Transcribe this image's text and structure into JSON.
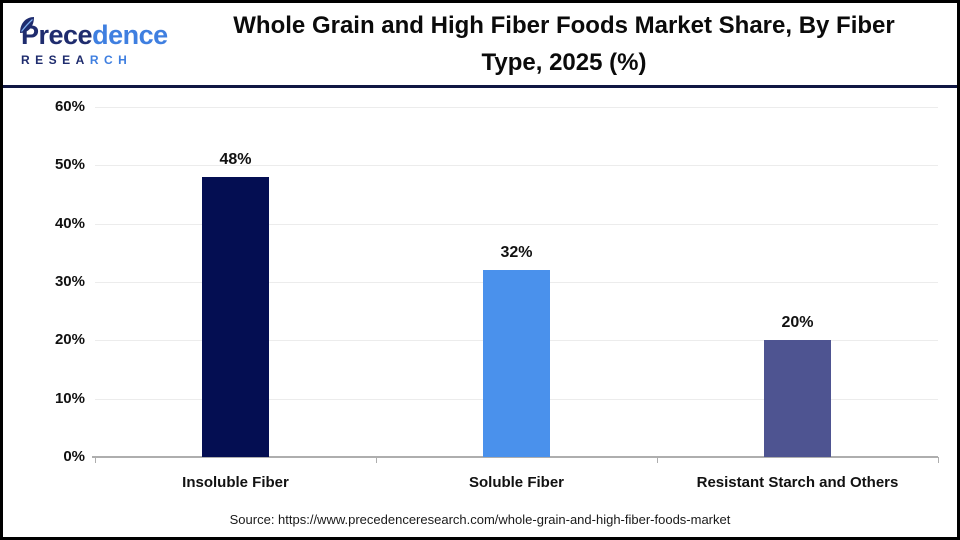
{
  "header": {
    "logo": {
      "brand_part1": "Prece",
      "brand_part2": "dence",
      "subtitle_part1": "RESEA",
      "subtitle_part2": "RCH",
      "navy": "#1F2C6E",
      "blue": "#3F7FE0"
    },
    "title": "Whole Grain and High Fiber Foods Market Share, By Fiber Type, 2025 (%)"
  },
  "chart_data": {
    "type": "bar",
    "title": "Whole Grain and High Fiber Foods Market Share, By Fiber Type, 2025 (%)",
    "categories": [
      "Insoluble Fiber",
      "Soluble Fiber",
      "Resistant Starch and Others"
    ],
    "values": [
      48,
      32,
      20
    ],
    "value_labels": [
      "48%",
      "32%",
      "20%"
    ],
    "bar_colors": [
      "#040E52",
      "#4A91EC",
      "#4E5491"
    ],
    "xlabel": "",
    "ylabel": "",
    "ylim": [
      0,
      60
    ],
    "yticks": [
      0,
      10,
      20,
      30,
      40,
      50,
      60
    ],
    "ytick_labels": [
      "0%",
      "10%",
      "20%",
      "30%",
      "40%",
      "50%",
      "60%"
    ],
    "grid": "horizontal-light",
    "gridline_color": "#ECECEC",
    "axis_color": "#AEAEAE",
    "legend": "none"
  },
  "source": "Source: https://www.precedenceresearch.com/whole-grain-and-high-fiber-foods-market"
}
